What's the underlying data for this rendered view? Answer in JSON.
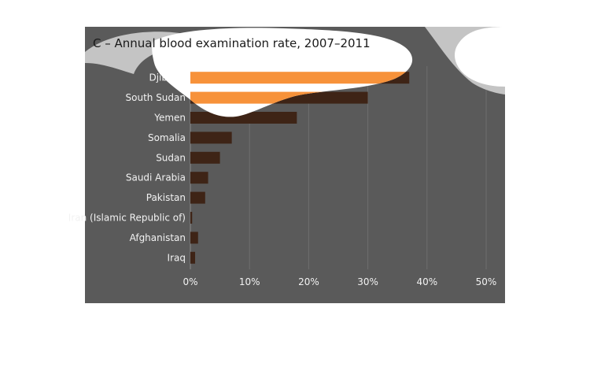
{
  "chart_data": {
    "type": "bar",
    "orientation": "horizontal",
    "title": "C – Annual blood examination rate, 2007–2011",
    "xlabel": "",
    "ylabel": "",
    "categories": [
      "Djibouti",
      "South Sudan",
      "Yemen",
      "Somalia",
      "Sudan",
      "Saudi Arabia",
      "Pakistan",
      "Iran (Islamic Republic of)",
      "Afghanistan",
      "Iraq"
    ],
    "values": [
      37,
      30,
      18,
      7,
      5,
      3,
      2.5,
      0.3,
      1.3,
      0.8
    ],
    "x_ticks": [
      "0%",
      "10%",
      "20%",
      "30%",
      "40%",
      "50%"
    ],
    "xlim": [
      0,
      50
    ],
    "grid": "vertical",
    "colors": {
      "background": "#5a5a5a",
      "bar": "#3e2416",
      "bar_highlight": "#f7923a",
      "grid": "#6e6e6e",
      "text": "#f2f2f2",
      "title": "#1a1a1a",
      "overlay": "#ffffff",
      "overlay_gray": "#c4c4c4"
    }
  }
}
